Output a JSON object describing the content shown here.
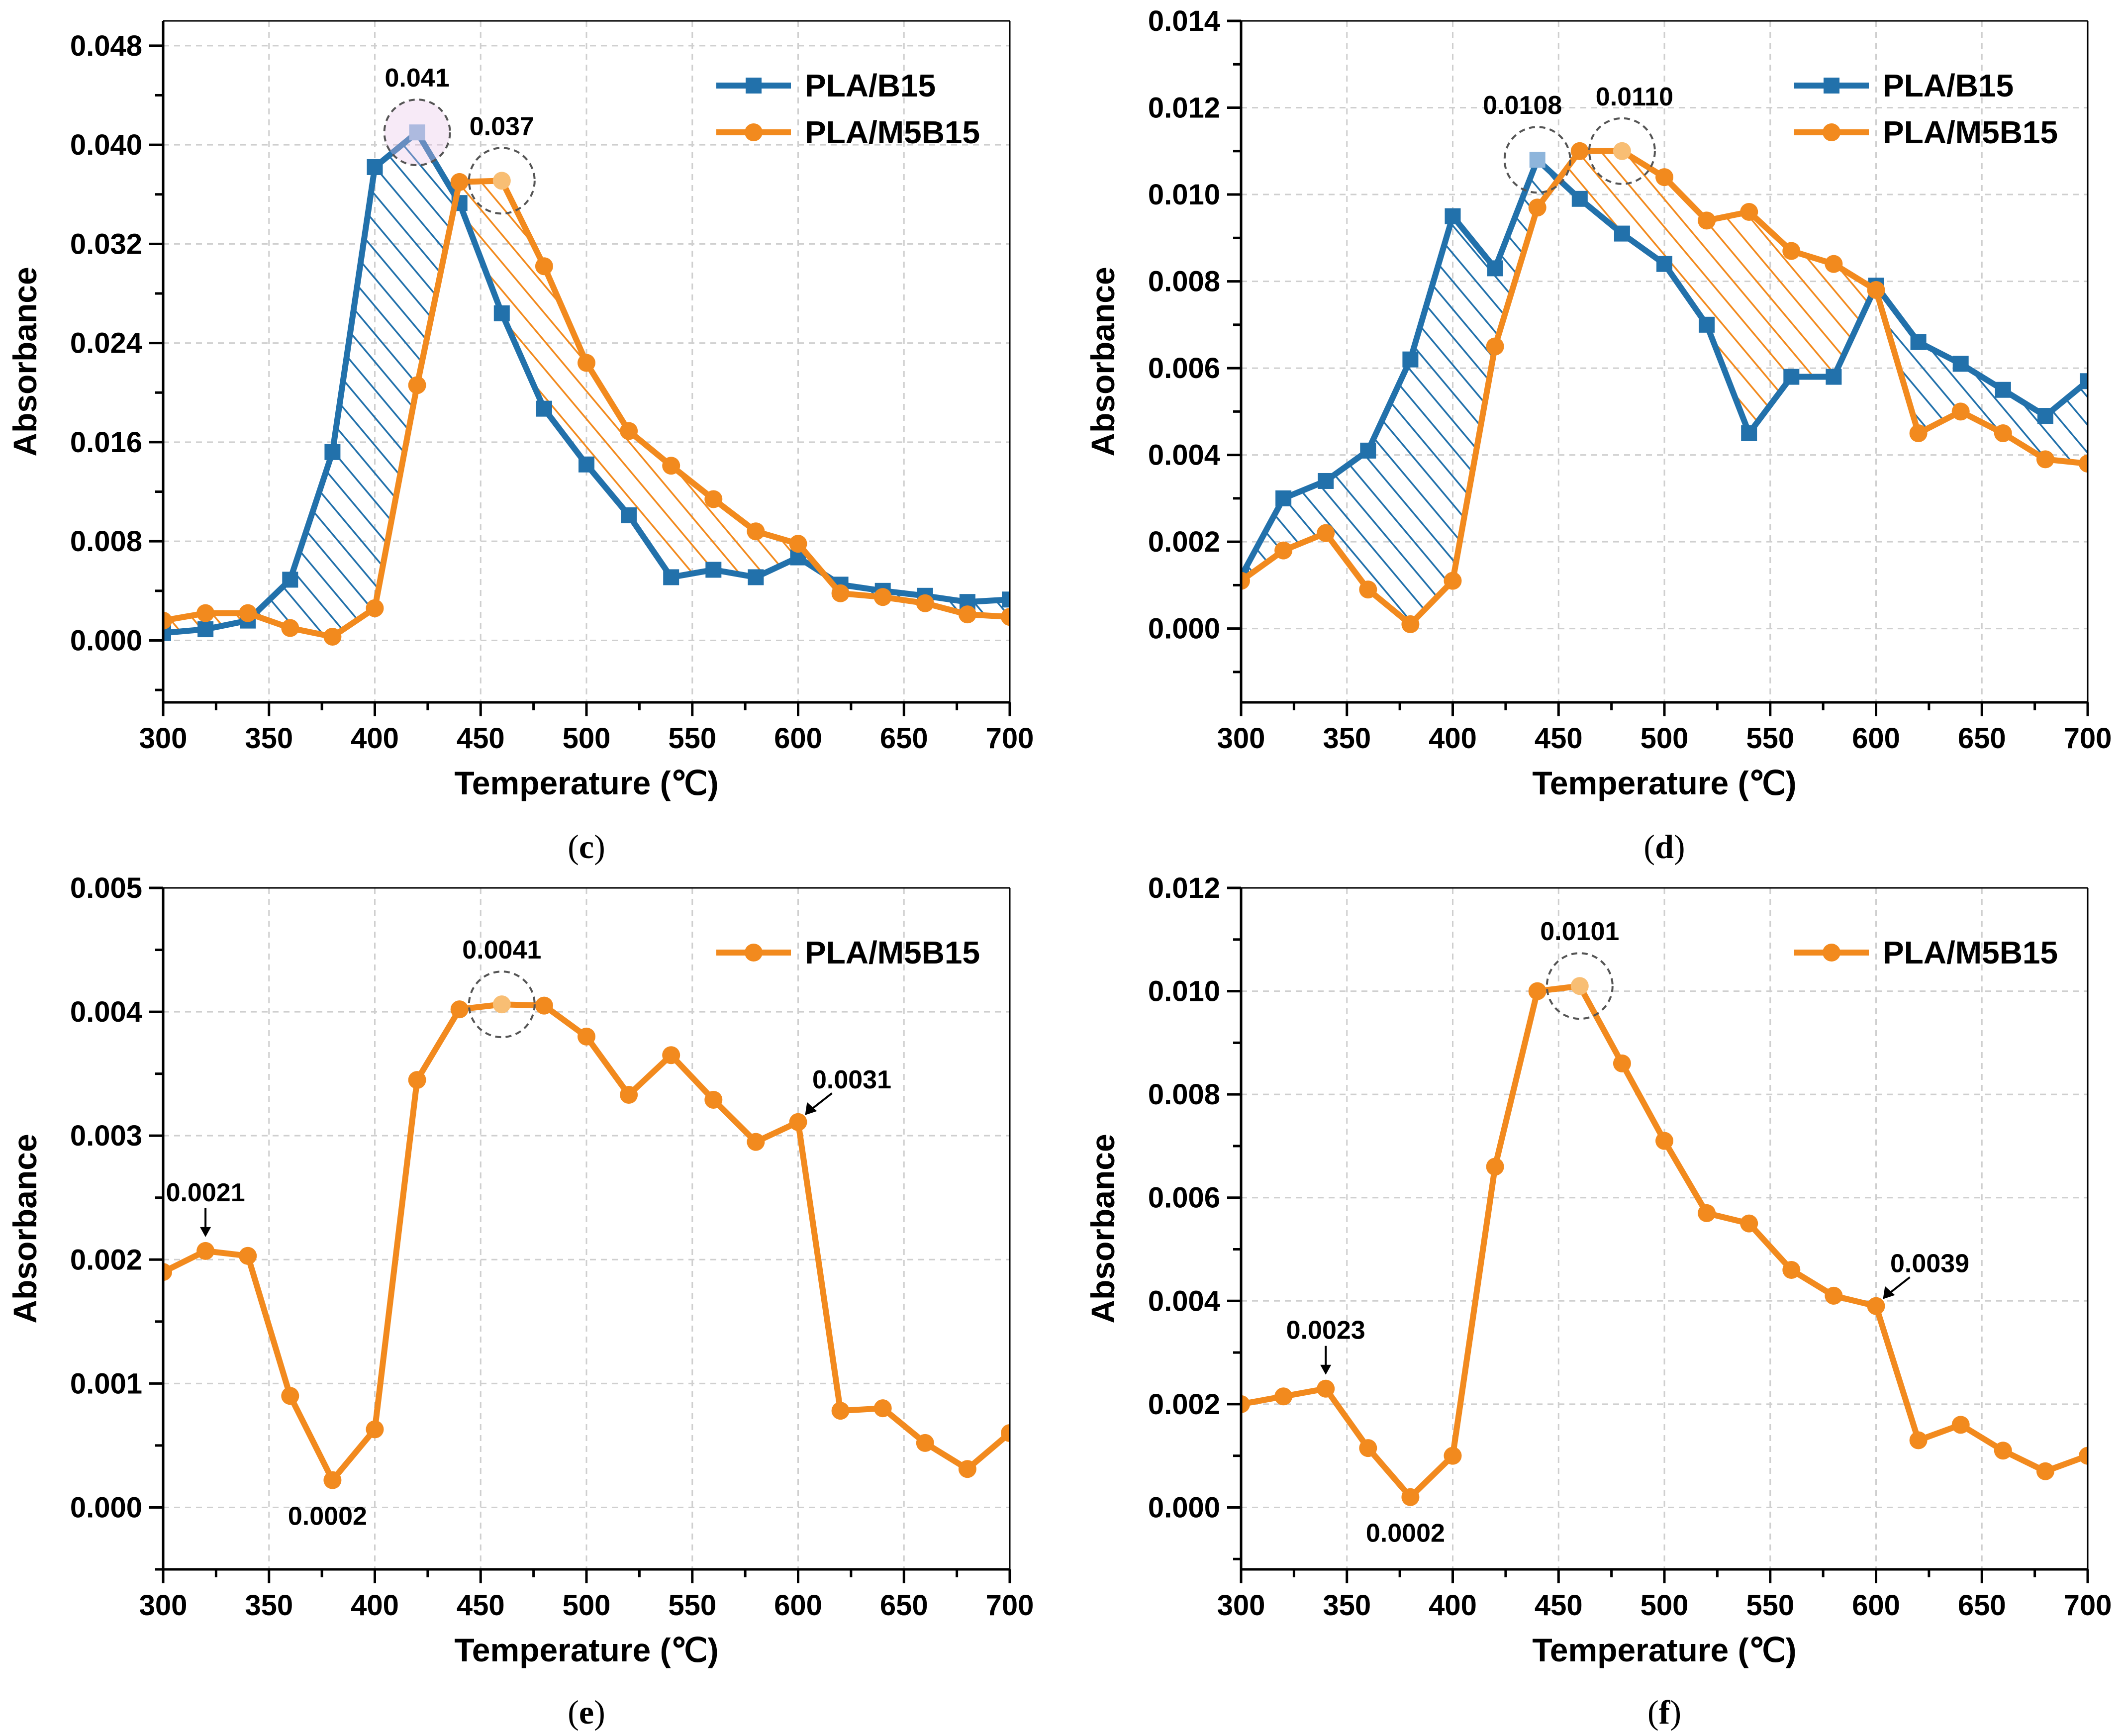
{
  "colors": {
    "blue": "#2271AB",
    "orange": "#F28A1E",
    "blue_light": "#8EB5DB",
    "orange_light": "#F8BE74"
  },
  "chart_data": [
    {
      "id": "c",
      "type": "line",
      "caption": "(c)",
      "xlabel": "Temperature (℃)",
      "ylabel": "Absorbance",
      "xlim": [
        300,
        700
      ],
      "ylim": [
        -0.005,
        0.05
      ],
      "xticks": [
        "300",
        "350",
        "400",
        "450",
        "500",
        "550",
        "600",
        "650",
        "700"
      ],
      "yticks": [
        "0.000",
        "0.008",
        "0.016",
        "0.024",
        "0.032",
        "0.040",
        "0.048"
      ],
      "grid": true,
      "legend": "top-right",
      "fill_between": true,
      "x": [
        300,
        320,
        340,
        360,
        380,
        400,
        420,
        440,
        460,
        480,
        500,
        520,
        540,
        560,
        580,
        600,
        620,
        640,
        660,
        680,
        700
      ],
      "series": [
        {
          "name": "PLA/B15",
          "color": "#2271AB",
          "marker": "square",
          "values": [
            0.0006,
            0.0009,
            0.0016,
            0.0049,
            0.0152,
            0.0382,
            0.041,
            0.0353,
            0.0264,
            0.0187,
            0.0142,
            0.0101,
            0.0051,
            0.0057,
            0.0051,
            0.0067,
            0.0045,
            0.004,
            0.0036,
            0.0031,
            0.0033
          ]
        },
        {
          "name": "PLA/M5B15",
          "color": "#F28A1E",
          "marker": "circle",
          "values": [
            0.0016,
            0.0022,
            0.0022,
            0.001,
            0.0003,
            0.0026,
            0.0206,
            0.037,
            0.0371,
            0.0302,
            0.0224,
            0.0169,
            0.0141,
            0.0114,
            0.0088,
            0.0078,
            0.0038,
            0.0035,
            0.003,
            0.0021,
            0.0019
          ]
        }
      ],
      "annotations": [
        {
          "text": "0.041",
          "x": 420,
          "y": 0.041,
          "circle": true,
          "series": 0
        },
        {
          "text": "0.037",
          "x": 460,
          "y": 0.0371,
          "circle": true,
          "series": 1
        }
      ]
    },
    {
      "id": "d",
      "type": "line",
      "caption": "(d)",
      "xlabel": "Temperature (℃)",
      "ylabel": "Absorbance",
      "xlim": [
        300,
        700
      ],
      "ylim": [
        -0.0017,
        0.014
      ],
      "xticks": [
        "300",
        "350",
        "400",
        "450",
        "500",
        "550",
        "600",
        "650",
        "700"
      ],
      "yticks": [
        "0.000",
        "0.002",
        "0.004",
        "0.006",
        "0.008",
        "0.010",
        "0.012",
        "0.014"
      ],
      "grid": true,
      "legend": "top-right",
      "fill_between": true,
      "x": [
        300,
        320,
        340,
        360,
        380,
        400,
        420,
        440,
        460,
        480,
        500,
        520,
        540,
        560,
        580,
        600,
        620,
        640,
        660,
        680,
        700
      ],
      "series": [
        {
          "name": "PLA/B15",
          "color": "#2271AB",
          "marker": "square",
          "values": [
            0.0012,
            0.003,
            0.0034,
            0.0041,
            0.0062,
            0.0095,
            0.0083,
            0.0108,
            0.0099,
            0.0091,
            0.0084,
            0.007,
            0.0045,
            0.0058,
            0.0058,
            0.0079,
            0.0066,
            0.0061,
            0.0055,
            0.0049,
            0.0057
          ]
        },
        {
          "name": "PLA/M5B15",
          "color": "#F28A1E",
          "marker": "circle",
          "values": [
            0.0011,
            0.0018,
            0.0022,
            0.0009,
            0.0001,
            0.0011,
            0.0065,
            0.0097,
            0.011,
            0.011,
            0.0104,
            0.0094,
            0.0096,
            0.0087,
            0.0084,
            0.0078,
            0.0045,
            0.005,
            0.0045,
            0.0039,
            0.0038
          ]
        }
      ],
      "annotations": [
        {
          "text": "0.0108",
          "x": 440,
          "y": 0.0108,
          "circle": true,
          "series": 0
        },
        {
          "text": "0.0110",
          "x": 480,
          "y": 0.011,
          "circle": true,
          "series": 1
        }
      ]
    },
    {
      "id": "e",
      "type": "line",
      "caption": "(e)",
      "xlabel": "Temperature (℃)",
      "ylabel": "Absorbance",
      "xlim": [
        300,
        700
      ],
      "ylim": [
        -0.0005,
        0.005
      ],
      "xticks": [
        "300",
        "350",
        "400",
        "450",
        "500",
        "550",
        "600",
        "650",
        "700"
      ],
      "yticks": [
        "0.000",
        "0.001",
        "0.002",
        "0.003",
        "0.004",
        "0.005"
      ],
      "grid": true,
      "legend": "top-right",
      "fill_between": false,
      "x": [
        300,
        320,
        340,
        360,
        380,
        400,
        420,
        440,
        460,
        480,
        500,
        520,
        540,
        560,
        580,
        600,
        620,
        640,
        660,
        680,
        700
      ],
      "series": [
        {
          "name": "PLA/M5B15",
          "color": "#F28A1E",
          "marker": "circle",
          "values": [
            0.0019,
            0.00207,
            0.00203,
            0.0009,
            0.00022,
            0.00063,
            0.00345,
            0.00402,
            0.00406,
            0.00405,
            0.0038,
            0.00333,
            0.00365,
            0.00329,
            0.00295,
            0.00311,
            0.00078,
            0.0008,
            0.00052,
            0.00031,
            0.0006
          ]
        }
      ],
      "annotations": [
        {
          "text": "0.0041",
          "x": 460,
          "y": 0.00406,
          "circle": true,
          "series": 0
        },
        {
          "text": "0.0021",
          "x": 320,
          "y": 0.00207,
          "arrow": "down",
          "series": 0
        },
        {
          "text": "0.0002",
          "x": 380,
          "y": 0.00022,
          "below": true,
          "series": 0
        },
        {
          "text": "0.0031",
          "x": 600,
          "y": 0.00311,
          "arrow": "diag",
          "series": 0
        }
      ]
    },
    {
      "id": "f",
      "type": "line",
      "caption": "(f)",
      "xlabel": "Temperature (℃)",
      "ylabel": "Absorbance",
      "xlim": [
        300,
        700
      ],
      "ylim": [
        -0.0012,
        0.012
      ],
      "xticks": [
        "300",
        "350",
        "400",
        "450",
        "500",
        "550",
        "600",
        "650",
        "700"
      ],
      "yticks": [
        "0.000",
        "0.002",
        "0.004",
        "0.006",
        "0.008",
        "0.010",
        "0.012"
      ],
      "grid": true,
      "legend": "top-right",
      "fill_between": false,
      "x": [
        300,
        320,
        340,
        360,
        380,
        400,
        420,
        440,
        460,
        480,
        500,
        520,
        540,
        560,
        580,
        600,
        620,
        640,
        660,
        680,
        700
      ],
      "series": [
        {
          "name": "PLA/M5B15",
          "color": "#F28A1E",
          "marker": "circle",
          "values": [
            0.002,
            0.00215,
            0.0023,
            0.00115,
            0.0002,
            0.001,
            0.0066,
            0.01,
            0.0101,
            0.0086,
            0.0071,
            0.0057,
            0.0055,
            0.0046,
            0.0041,
            0.0039,
            0.0013,
            0.0016,
            0.0011,
            0.0007,
            0.001
          ]
        }
      ],
      "annotations": [
        {
          "text": "0.0101",
          "x": 460,
          "y": 0.0101,
          "circle": true,
          "series": 0
        },
        {
          "text": "0.0023",
          "x": 340,
          "y": 0.0023,
          "arrow": "down",
          "series": 0
        },
        {
          "text": "0.0002",
          "x": 380,
          "y": 0.0002,
          "below": true,
          "series": 0
        },
        {
          "text": "0.0039",
          "x": 600,
          "y": 0.0039,
          "arrow": "diag",
          "series": 0
        }
      ]
    }
  ]
}
